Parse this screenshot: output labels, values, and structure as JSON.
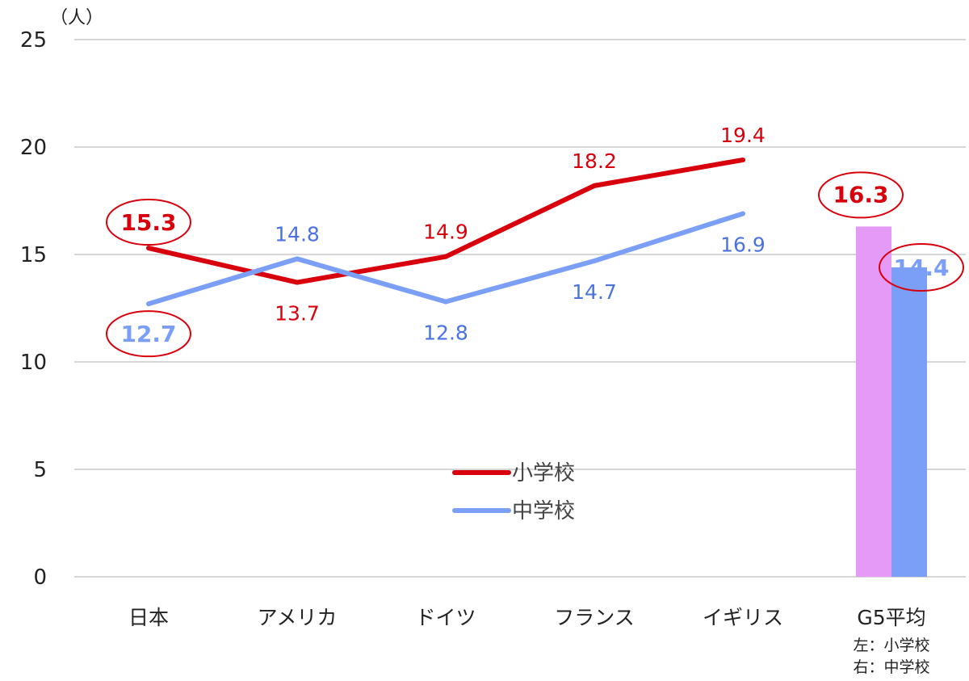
{
  "chart_data": {
    "type": "line",
    "unit_label": "（人）",
    "categories": [
      "日本",
      "アメリカ",
      "ドイツ",
      "フランス",
      "イギリス"
    ],
    "series": [
      {
        "name": "小学校",
        "values": [
          15.3,
          13.7,
          14.9,
          18.2,
          19.4
        ],
        "color": "#d9000d",
        "labels": [
          "15.3",
          "13.7",
          "14.9",
          "18.2",
          "19.4"
        ]
      },
      {
        "name": "中学校",
        "values": [
          12.7,
          14.8,
          12.8,
          14.7,
          16.9
        ],
        "color": "#7b9ff7",
        "labels": [
          "12.7",
          "14.8",
          "12.8",
          "14.7",
          "16.9"
        ]
      }
    ],
    "average": {
      "category": "G5平均",
      "note_lines": [
        "左：小学校",
        "右：中学校"
      ],
      "bars": [
        {
          "series": "小学校",
          "value": 16.3,
          "label": "16.3",
          "color": "#e49af6",
          "label_color": "#d9000d"
        },
        {
          "series": "中学校",
          "value": 14.4,
          "label": "14.4",
          "color": "#7b9ff7",
          "label_color": "#7b9ff7"
        }
      ]
    },
    "y_ticks": [
      "0",
      "5",
      "10",
      "15",
      "20",
      "25"
    ],
    "ylim": [
      0,
      25
    ],
    "grid": true,
    "legend_placement": "center",
    "highlight_ring_color": "#d9000d"
  }
}
